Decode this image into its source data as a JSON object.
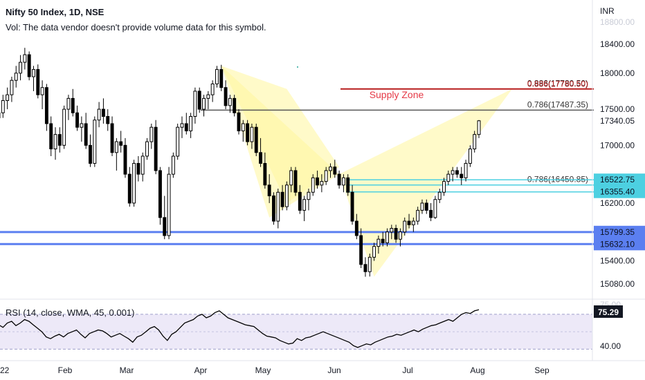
{
  "header": {
    "title": "Nifty 50 Index, 1D, NSE",
    "volume_note": "Vol: The data vendor doesn't provide volume data for this symbol."
  },
  "currency": "INR",
  "chart_data": [
    {
      "type": "candlestick",
      "x_ticks": [
        "22",
        "Feb",
        "Mar",
        "Apr",
        "May",
        "Jun",
        "Jul",
        "Aug",
        "Sep"
      ],
      "y_ticks": [
        15080,
        15400,
        16200,
        17000,
        17500,
        18000,
        18400
      ],
      "ylim": [
        14950,
        18900
      ],
      "candles": [
        [
          17380,
          17560,
          17300,
          17450
        ],
        [
          17450,
          17700,
          17380,
          17620
        ],
        [
          17620,
          17800,
          17500,
          17700
        ],
        [
          17700,
          17950,
          17600,
          17900
        ],
        [
          17900,
          18100,
          17800,
          18000
        ],
        [
          18000,
          18250,
          17900,
          18150
        ],
        [
          18150,
          18350,
          18050,
          18255
        ],
        [
          18255,
          18300,
          17900,
          17950
        ],
        [
          17950,
          18100,
          17750,
          18050
        ],
        [
          18050,
          18120,
          17650,
          17700
        ],
        [
          17700,
          17900,
          17500,
          17800
        ],
        [
          17800,
          17850,
          17200,
          17300
        ],
        [
          17300,
          17400,
          16850,
          16950
        ],
        [
          16950,
          17250,
          16800,
          17150
        ],
        [
          17150,
          17250,
          16900,
          17000
        ],
        [
          17000,
          17550,
          16950,
          17500
        ],
        [
          17500,
          17700,
          17350,
          17650
        ],
        [
          17650,
          17780,
          17400,
          17450
        ],
        [
          17450,
          17550,
          17200,
          17250
        ],
        [
          17250,
          17400,
          17050,
          17300
        ],
        [
          17300,
          17450,
          16950,
          17000
        ],
        [
          17000,
          17150,
          16700,
          16750
        ],
        [
          16750,
          17400,
          16700,
          17350
        ],
        [
          17350,
          17600,
          17250,
          17500
        ],
        [
          17500,
          17650,
          17300,
          17400
        ],
        [
          17400,
          17500,
          17200,
          17300
        ],
        [
          17300,
          17400,
          16850,
          16900
        ],
        [
          16900,
          17100,
          16650,
          17050
        ],
        [
          17050,
          17200,
          16900,
          17000
        ],
        [
          17000,
          17100,
          16550,
          16600
        ],
        [
          16600,
          16700,
          16150,
          16200
        ],
        [
          16200,
          16800,
          16150,
          16750
        ],
        [
          16750,
          16850,
          16500,
          16600
        ],
        [
          16600,
          16900,
          16500,
          16850
        ],
        [
          16850,
          17100,
          16800,
          17050
        ],
        [
          17050,
          17300,
          16950,
          17250
        ],
        [
          17250,
          17350,
          16600,
          16650
        ],
        [
          16650,
          16700,
          15900,
          16000
        ],
        [
          16000,
          16300,
          15700,
          15750
        ],
        [
          15750,
          16700,
          15700,
          16600
        ],
        [
          16600,
          16900,
          16550,
          16850
        ],
        [
          16850,
          17300,
          16800,
          17250
        ],
        [
          17250,
          17400,
          17100,
          17300
        ],
        [
          17300,
          17450,
          17150,
          17200
        ],
        [
          17200,
          17450,
          17100,
          17400
        ],
        [
          17400,
          17800,
          17300,
          17750
        ],
        [
          17750,
          17800,
          17450,
          17500
        ],
        [
          17500,
          17700,
          17400,
          17650
        ],
        [
          17650,
          17750,
          17500,
          17700
        ],
        [
          17700,
          17900,
          17600,
          17850
        ],
        [
          17850,
          18100,
          17800,
          18050
        ],
        [
          18050,
          18115,
          17750,
          17800
        ],
        [
          17800,
          17900,
          17500,
          17550
        ],
        [
          17550,
          17700,
          17450,
          17650
        ],
        [
          17650,
          17700,
          17400,
          17450
        ],
        [
          17450,
          17500,
          17150,
          17200
        ],
        [
          17200,
          17350,
          17050,
          17300
        ],
        [
          17300,
          17350,
          17000,
          17050
        ],
        [
          17050,
          17300,
          16950,
          17250
        ],
        [
          17250,
          17300,
          16850,
          16900
        ],
        [
          16900,
          17100,
          16700,
          16750
        ],
        [
          16750,
          16900,
          16400,
          16450
        ],
        [
          16450,
          16600,
          16200,
          16300
        ],
        [
          16300,
          16350,
          15900,
          15950
        ],
        [
          15950,
          16400,
          15850,
          16350
        ],
        [
          16350,
          16450,
          16100,
          16150
        ],
        [
          16150,
          16500,
          16100,
          16450
        ],
        [
          16450,
          16700,
          16350,
          16650
        ],
        [
          16650,
          16700,
          16300,
          16350
        ],
        [
          16350,
          16450,
          16050,
          16100
        ],
        [
          16100,
          16300,
          15950,
          16250
        ],
        [
          16250,
          16400,
          16100,
          16350
        ],
        [
          16350,
          16600,
          16300,
          16550
        ],
        [
          16550,
          16650,
          16400,
          16450
        ],
        [
          16450,
          16600,
          16350,
          16500
        ],
        [
          16500,
          16700,
          16450,
          16650
        ],
        [
          16650,
          16750,
          16550,
          16700
        ],
        [
          16700,
          16800,
          16550,
          16600
        ],
        [
          16600,
          16650,
          16400,
          16450
        ],
        [
          16450,
          16600,
          16350,
          16550
        ],
        [
          16550,
          16600,
          16300,
          16350
        ],
        [
          16350,
          16450,
          15900,
          15950
        ],
        [
          15950,
          16050,
          15700,
          15750
        ],
        [
          15750,
          15850,
          15300,
          15350
        ],
        [
          15350,
          15450,
          15180,
          15250
        ],
        [
          15250,
          15500,
          15183,
          15450
        ],
        [
          15450,
          15650,
          15400,
          15600
        ],
        [
          15600,
          15750,
          15500,
          15700
        ],
        [
          15700,
          15800,
          15600,
          15650
        ],
        [
          15650,
          15850,
          15600,
          15800
        ],
        [
          15800,
          15900,
          15700,
          15850
        ],
        [
          15850,
          15900,
          15650,
          15700
        ],
        [
          15700,
          15850,
          15600,
          15800
        ],
        [
          15800,
          16000,
          15750,
          15950
        ],
        [
          15950,
          16050,
          15850,
          15900
        ],
        [
          15900,
          16000,
          15800,
          15950
        ],
        [
          15950,
          16150,
          15900,
          16100
        ],
        [
          16100,
          16250,
          16050,
          16200
        ],
        [
          16200,
          16250,
          16050,
          16100
        ],
        [
          16100,
          16200,
          15950,
          16000
        ],
        [
          16000,
          16300,
          15980,
          16250
        ],
        [
          16250,
          16400,
          16200,
          16350
        ],
        [
          16350,
          16550,
          16300,
          16500
        ],
        [
          16500,
          16650,
          16450,
          16600
        ],
        [
          16600,
          16700,
          16500,
          16650
        ],
        [
          16650,
          16700,
          16550,
          16600
        ],
        [
          16600,
          16700,
          16450,
          16550
        ],
        [
          16550,
          16800,
          16500,
          16750
        ],
        [
          16750,
          17000,
          16700,
          16950
        ],
        [
          16950,
          17200,
          16900,
          17150
        ],
        [
          17150,
          17350,
          17100,
          17340
        ]
      ],
      "horizontal_levels": [
        {
          "value": 17780.5,
          "label": "0.886(17780.50)",
          "color": "#b71c1c"
        },
        {
          "value": 17487.35,
          "label": "0.786(17487.35)",
          "color": "#555555"
        },
        {
          "value": 16450.85,
          "label": "0.786(16450.85)",
          "color": "#4dd0e1"
        },
        {
          "value": 16522.75,
          "label": "",
          "color": "#4dd0e1"
        },
        {
          "value": 16355.4,
          "label": "",
          "color": "#4dd0e1"
        },
        {
          "value": 15799.35,
          "label": "",
          "color": "#5b7ff0"
        },
        {
          "value": 15632.1,
          "label": "",
          "color": "#5b7ff0"
        }
      ],
      "price_labels": [
        {
          "value": 17340.05,
          "text": "17340.05",
          "style": "plain"
        },
        {
          "value": 16522.75,
          "text": "16522.75",
          "style": "cyan"
        },
        {
          "value": 16355.4,
          "text": "16355.40",
          "style": "cyan"
        },
        {
          "value": 15799.35,
          "text": "15799.35",
          "style": "blue"
        },
        {
          "value": 15632.1,
          "text": "15632.10",
          "style": "blue"
        }
      ],
      "annotations": [
        {
          "text": "Supply Zone",
          "color": "#e53946"
        }
      ],
      "pattern_color": "#fff59d",
      "candle_colors": {
        "up": "#ffffff",
        "down": "#000000",
        "outline": "#000000"
      }
    },
    {
      "type": "line",
      "title": "RSI (14, close, WMA, 45, 0.001)",
      "current_value": "75.29",
      "y_ticks": [
        40
      ],
      "y_tick_labels": [
        "40.00"
      ],
      "ylim": [
        20,
        85
      ],
      "band": [
        30,
        70
      ],
      "values": [
        58,
        55,
        60,
        62,
        57,
        60,
        64,
        62,
        58,
        54,
        50,
        44,
        42,
        45,
        47,
        44,
        48,
        50,
        52,
        47,
        43,
        48,
        50,
        52,
        51,
        48,
        44,
        46,
        48,
        45,
        42,
        38,
        44,
        46,
        50,
        54,
        56,
        52,
        45,
        40,
        47,
        50,
        55,
        60,
        62,
        64,
        68,
        70,
        66,
        68,
        72,
        74,
        70,
        66,
        64,
        62,
        60,
        58,
        57,
        56,
        52,
        48,
        45,
        44,
        43,
        40,
        38,
        36,
        37,
        42,
        40,
        43,
        44,
        46,
        48,
        50,
        48,
        46,
        44,
        42,
        40,
        38,
        34,
        32,
        34,
        36,
        35,
        38,
        40,
        42,
        44,
        45,
        47,
        46,
        48,
        50,
        52,
        50,
        53,
        55,
        57,
        58,
        60,
        62,
        64,
        62,
        66,
        70,
        72,
        71,
        74,
        75.29
      ]
    }
  ]
}
